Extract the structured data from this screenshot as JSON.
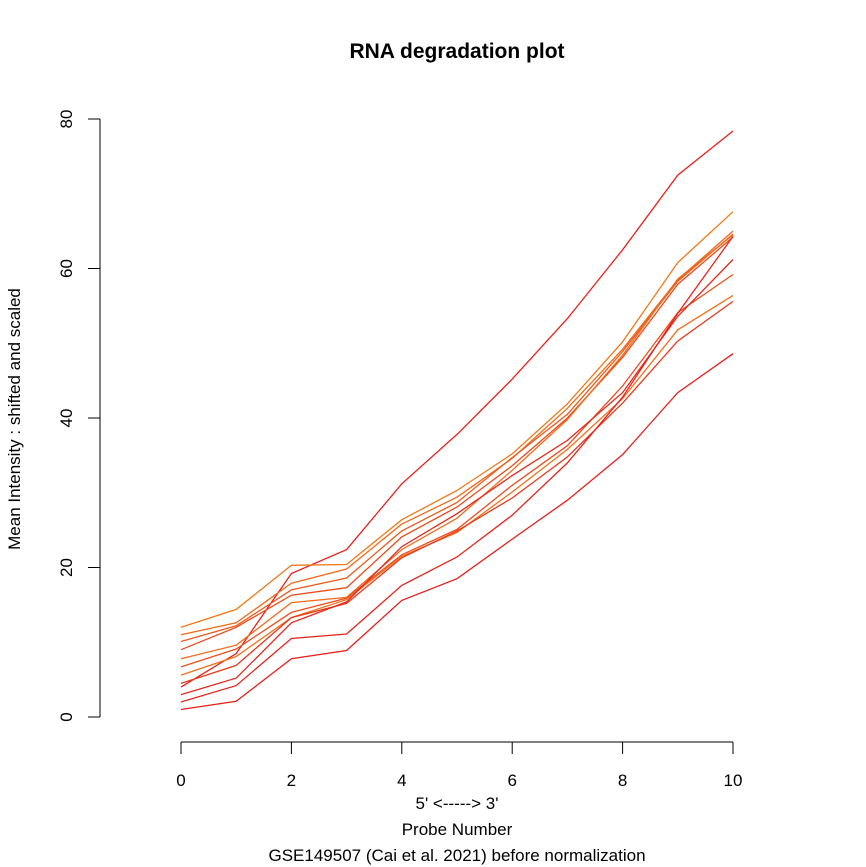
{
  "chart_data": {
    "type": "line",
    "title": "RNA degradation plot",
    "xlabel": "5' <-----> 3'",
    "xlabel2": "Probe Number",
    "subtitle": "GSE149507 (Cai et al. 2021) before normalization",
    "ylabel": "Mean Intensity : shifted and scaled",
    "xlim": [
      0,
      10
    ],
    "ylim": [
      0,
      80
    ],
    "x_ticks": [
      0,
      2,
      4,
      6,
      8,
      10
    ],
    "y_ticks": [
      0,
      20,
      40,
      60,
      80
    ],
    "x": [
      0,
      1,
      2,
      3,
      4,
      5,
      6,
      7,
      8,
      9,
      10
    ],
    "series": [
      {
        "color": "#e8201a",
        "values": [
          4.0,
          8.5,
          19.2,
          22.4,
          31.2,
          37.8,
          45.2,
          53.3,
          62.5,
          72.5,
          78.4
        ]
      },
      {
        "color": "#f07818",
        "values": [
          12.0,
          14.4,
          20.3,
          20.4,
          26.4,
          30.3,
          35.2,
          41.9,
          50.2,
          60.8,
          67.6
        ]
      },
      {
        "color": "#ef6a1a",
        "values": [
          11.0,
          12.6,
          17.9,
          19.8,
          25.8,
          29.4,
          34.6,
          41.3,
          49.2,
          58.5,
          65.0
        ]
      },
      {
        "color": "#ec5a1a",
        "values": [
          10.1,
          12.2,
          17.0,
          18.6,
          24.9,
          28.7,
          34.7,
          40.5,
          48.9,
          58.3,
          64.6
        ]
      },
      {
        "color": "#ea4a1a",
        "values": [
          9.0,
          12.0,
          16.3,
          17.3,
          24.1,
          28.1,
          33.6,
          40.0,
          48.1,
          57.9,
          64.2
        ]
      },
      {
        "color": "#f06a1a",
        "values": [
          7.8,
          9.6,
          15.3,
          16.0,
          22.4,
          26.6,
          33.0,
          39.8,
          48.4,
          58.6,
          64.5
        ]
      },
      {
        "color": "#ec5020",
        "values": [
          6.7,
          9.1,
          14.0,
          15.9,
          21.7,
          25.1,
          31.0,
          36.3,
          44.3,
          54.1,
          59.2
        ]
      },
      {
        "color": "#f0701a",
        "values": [
          5.6,
          8.1,
          13.3,
          15.7,
          21.5,
          24.7,
          30.1,
          35.8,
          42.6,
          51.8,
          56.4
        ]
      },
      {
        "color": "#e63a1c",
        "values": [
          4.5,
          6.9,
          13.3,
          15.2,
          21.3,
          24.9,
          29.3,
          34.8,
          42.0,
          50.3,
          55.6
        ]
      },
      {
        "color": "#e4281c",
        "values": [
          3.0,
          5.2,
          12.6,
          15.4,
          22.8,
          27.2,
          32.3,
          37.0,
          43.4,
          53.6,
          61.2
        ]
      },
      {
        "color": "#e2261e",
        "values": [
          2.0,
          4.2,
          10.5,
          11.1,
          17.6,
          21.4,
          27.0,
          34.0,
          42.8,
          54.0,
          64.3
        ]
      },
      {
        "color": "#e3201c",
        "values": [
          1.0,
          2.1,
          7.8,
          8.9,
          15.6,
          18.5,
          23.8,
          29.0,
          35.1,
          43.4,
          48.6
        ]
      }
    ]
  }
}
